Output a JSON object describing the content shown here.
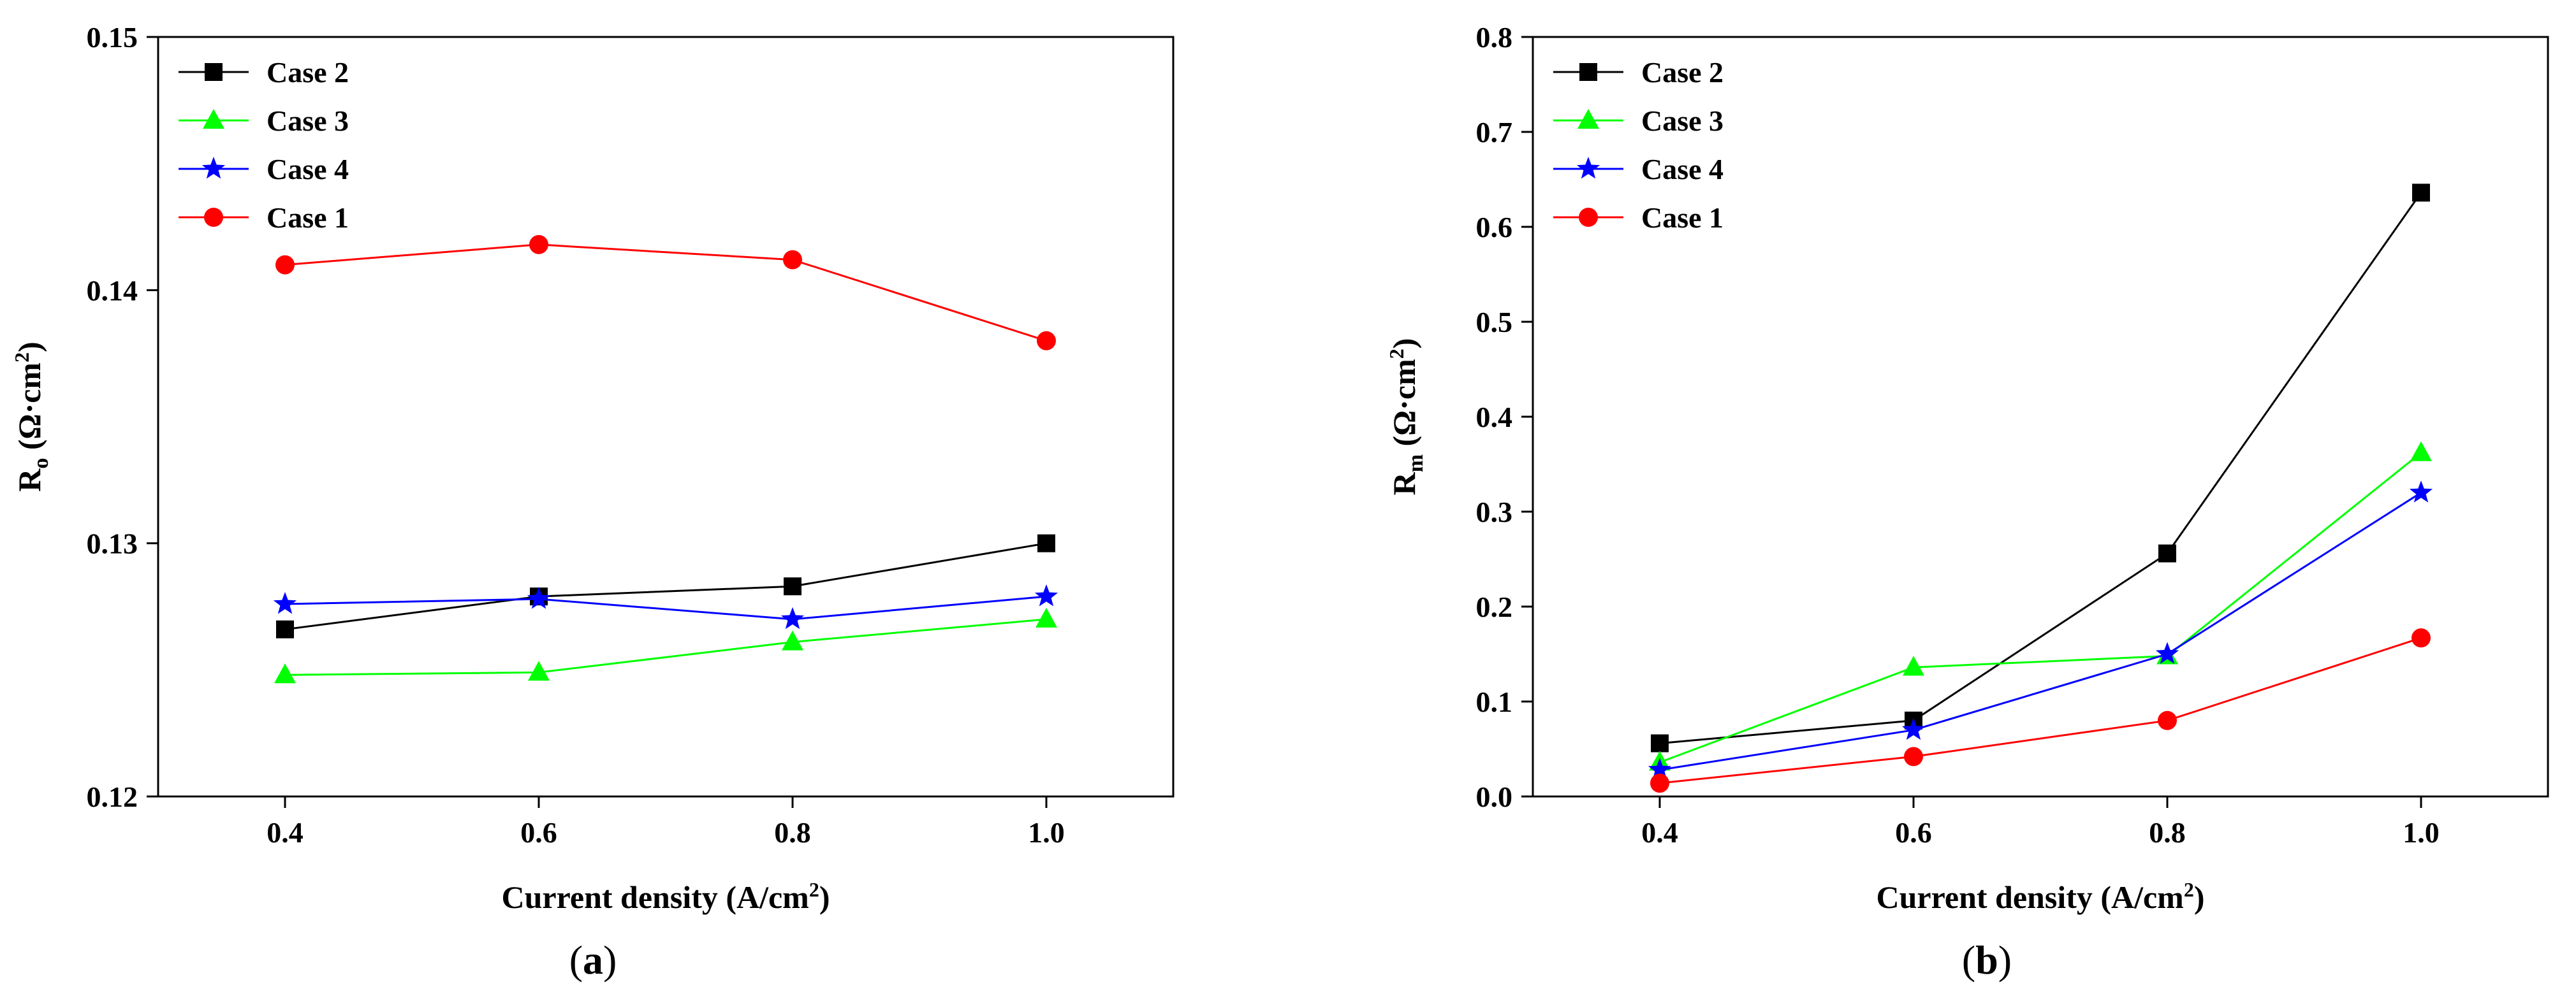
{
  "chart_data": [
    {
      "type": "line",
      "panel_label": "a",
      "xlabel": "Current density (A/cm",
      "xlabel_sup": "2",
      "xlabel_end": ")",
      "ylabel": "R",
      "ylabel_sub": "o",
      "ylabel_units": " (Ω·cm",
      "ylabel_sup": "2",
      "ylabel_end": ")",
      "xlim": [
        0.3,
        1.1
      ],
      "ylim": [
        0.12,
        0.15
      ],
      "xticks": [
        0.4,
        0.6,
        0.8,
        1.0
      ],
      "xtick_labels": [
        "0.4",
        "0.6",
        "0.8",
        "1.0"
      ],
      "yticks": [
        0.12,
        0.13,
        0.14,
        0.15
      ],
      "ytick_labels": [
        "0.12",
        "0.13",
        "0.14",
        "0.15"
      ],
      "legend_position": "top-left",
      "x": [
        0.4,
        0.6,
        0.8,
        1.0
      ],
      "series": [
        {
          "name": "Case 2",
          "color": "#000000",
          "marker": "square",
          "values": [
            0.1266,
            0.1279,
            0.1283,
            0.13
          ]
        },
        {
          "name": "Case 3",
          "color": "#00ff00",
          "marker": "triangle",
          "values": [
            0.1248,
            0.1249,
            0.1261,
            0.127
          ]
        },
        {
          "name": "Case 4",
          "color": "#0000ff",
          "marker": "star",
          "values": [
            0.1276,
            0.1278,
            0.127,
            0.1279
          ]
        },
        {
          "name": "Case 1",
          "color": "#ff0000",
          "marker": "circle",
          "values": [
            0.141,
            0.1418,
            0.1412,
            0.138
          ]
        }
      ]
    },
    {
      "type": "line",
      "panel_label": "b",
      "xlabel": "Current density (A/cm",
      "xlabel_sup": "2",
      "xlabel_end": ")",
      "ylabel": "R",
      "ylabel_sub": "m",
      "ylabel_units": " (Ω·cm",
      "ylabel_sup": "2",
      "ylabel_end": ")",
      "xlim": [
        0.3,
        1.1
      ],
      "ylim": [
        0.0,
        0.8
      ],
      "xticks": [
        0.4,
        0.6,
        0.8,
        1.0
      ],
      "xtick_labels": [
        "0.4",
        "0.6",
        "0.8",
        "1.0"
      ],
      "yticks": [
        0.0,
        0.1,
        0.2,
        0.3,
        0.4,
        0.5,
        0.6,
        0.7,
        0.8
      ],
      "ytick_labels": [
        "0.0",
        "0.1",
        "0.2",
        "0.3",
        "0.4",
        "0.5",
        "0.6",
        "0.7",
        "0.8"
      ],
      "legend_position": "top-left",
      "x": [
        0.4,
        0.6,
        0.8,
        1.0
      ],
      "series": [
        {
          "name": "Case 2",
          "color": "#000000",
          "marker": "square",
          "values": [
            0.056,
            0.08,
            0.256,
            0.636
          ]
        },
        {
          "name": "Case 3",
          "color": "#00ff00",
          "marker": "triangle",
          "values": [
            0.036,
            0.136,
            0.148,
            0.362
          ]
        },
        {
          "name": "Case 4",
          "color": "#0000ff",
          "marker": "star",
          "values": [
            0.028,
            0.07,
            0.15,
            0.32
          ]
        },
        {
          "name": "Case 1",
          "color": "#ff0000",
          "marker": "circle",
          "values": [
            0.014,
            0.042,
            0.08,
            0.167
          ]
        }
      ]
    }
  ]
}
